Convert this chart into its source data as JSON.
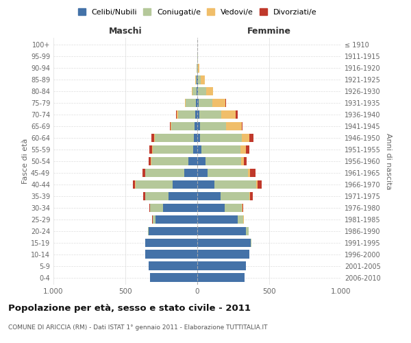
{
  "age_groups": [
    "0-4",
    "5-9",
    "10-14",
    "15-19",
    "20-24",
    "25-29",
    "30-34",
    "35-39",
    "40-44",
    "45-49",
    "50-54",
    "55-59",
    "60-64",
    "65-69",
    "70-74",
    "75-79",
    "80-84",
    "85-89",
    "90-94",
    "95-99",
    "100+"
  ],
  "birth_years": [
    "2006-2010",
    "2001-2005",
    "1996-2000",
    "1991-1995",
    "1986-1990",
    "1981-1985",
    "1976-1980",
    "1971-1975",
    "1966-1970",
    "1961-1965",
    "1956-1960",
    "1951-1955",
    "1946-1950",
    "1941-1945",
    "1936-1940",
    "1931-1935",
    "1926-1930",
    "1921-1925",
    "1916-1920",
    "1911-1915",
    "≤ 1910"
  ],
  "males": {
    "celibi": [
      330,
      340,
      360,
      360,
      340,
      290,
      240,
      200,
      170,
      90,
      60,
      30,
      25,
      20,
      15,
      10,
      5,
      3,
      2,
      1,
      0
    ],
    "coniugati": [
      0,
      0,
      0,
      2,
      5,
      20,
      90,
      160,
      260,
      270,
      260,
      280,
      270,
      160,
      120,
      70,
      30,
      8,
      3,
      1,
      0
    ],
    "vedovi": [
      0,
      0,
      0,
      0,
      0,
      0,
      0,
      2,
      2,
      2,
      2,
      4,
      6,
      8,
      10,
      8,
      4,
      3,
      0,
      0,
      0
    ],
    "divorziati": [
      0,
      0,
      0,
      0,
      0,
      2,
      5,
      14,
      18,
      20,
      18,
      20,
      20,
      4,
      4,
      0,
      0,
      0,
      0,
      0,
      0
    ]
  },
  "females": {
    "nubili": [
      330,
      340,
      360,
      370,
      340,
      280,
      190,
      160,
      120,
      70,
      55,
      30,
      20,
      20,
      15,
      10,
      5,
      3,
      2,
      1,
      0
    ],
    "coniugate": [
      0,
      0,
      0,
      4,
      15,
      40,
      120,
      200,
      290,
      280,
      250,
      270,
      290,
      180,
      150,
      95,
      55,
      20,
      5,
      2,
      0
    ],
    "vedove": [
      0,
      0,
      0,
      0,
      0,
      2,
      2,
      5,
      8,
      15,
      20,
      40,
      50,
      110,
      100,
      90,
      50,
      30,
      5,
      2,
      0
    ],
    "divorziate": [
      0,
      0,
      0,
      0,
      0,
      3,
      5,
      20,
      30,
      40,
      20,
      20,
      30,
      5,
      14,
      4,
      0,
      0,
      0,
      0,
      0
    ]
  },
  "colors": {
    "celibi": "#4472a8",
    "coniugati": "#b5c89a",
    "vedovi": "#f0be6a",
    "divorziati": "#c0392b"
  },
  "title": "Popolazione per età, sesso e stato civile - 2011",
  "subtitle": "COMUNE DI ARICCIA (RM) - Dati ISTAT 1° gennaio 2011 - Elaborazione TUTTITALIA.IT",
  "xlabel_left": "Maschi",
  "xlabel_right": "Femmine",
  "ylabel_left": "Fasce di età",
  "ylabel_right": "Anni di nascita",
  "xlim": 1000,
  "background_color": "#ffffff",
  "grid_color": "#cccccc"
}
